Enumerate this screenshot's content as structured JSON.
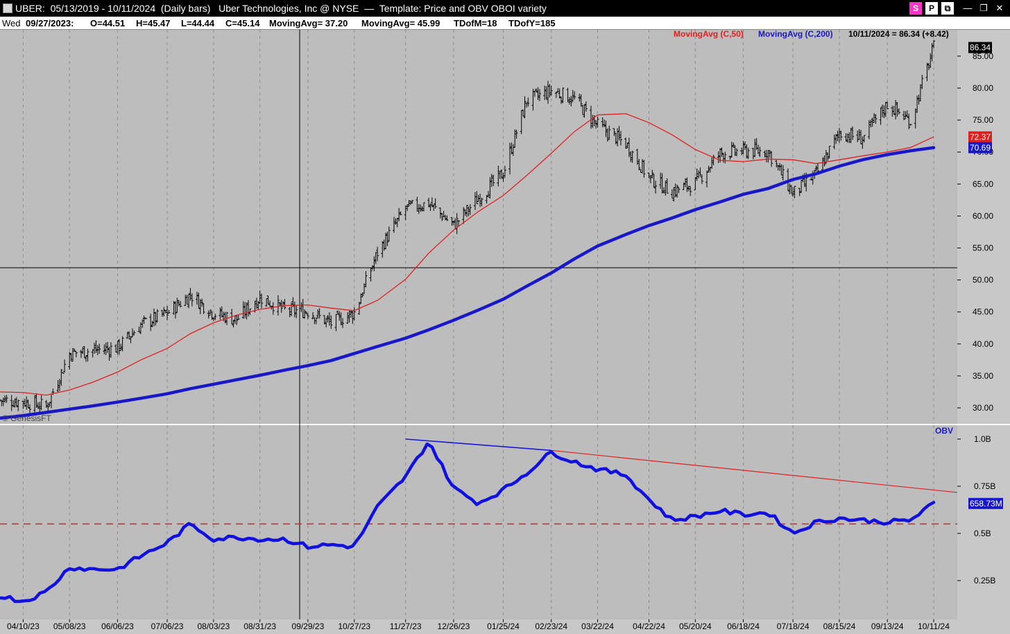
{
  "window": {
    "title": "UBER:  05/13/2019 - 10/11/2024  (Daily bars)   Uber Technologies, Inc @ NYSE  —  Template: Price and OBV OBOI variety",
    "buttons": [
      "S",
      "P",
      "⧉"
    ],
    "controls": [
      "—",
      "❐",
      "✕"
    ]
  },
  "info": {
    "day": "Wed",
    "date": "09/27/2023:",
    "open": "O=44.51",
    "high": "H=45.47",
    "low": "L=44.44",
    "close": "C=45.14",
    "ma1": "MovingAvg= 37.20",
    "ma2": "MovingAvg= 45.99",
    "tdofm": "TDofM=18",
    "tdofy": "TDofY=185"
  },
  "legend": {
    "ma50": "MovingAvg (C,50)",
    "ma200": "MovingAvg (C,200)",
    "last": "10/11/2024 = 86.34 (+8.42)"
  },
  "watermark": "© GenesisFT",
  "colors": {
    "price_bar": "#000000",
    "ma50": "#e02020",
    "ma200": "#1818c8",
    "obv": "#1010e0",
    "trend_blue": "#1818e0",
    "trend_red": "#e02020",
    "support": "#e02020"
  },
  "chart_data": [
    {
      "type": "line",
      "panel": "price",
      "ylim": [
        27,
        90
      ],
      "y_ticks": [
        "30.00",
        "35.00",
        "40.00",
        "45.00",
        "50.00",
        "55.00",
        "60.00",
        "65.00",
        "70.00",
        "75.00",
        "80.00",
        "85.00"
      ],
      "x_ticks": [
        "04/10/23",
        "05/08/23",
        "06/06/23",
        "07/06/23",
        "08/03/23",
        "08/31/23",
        "09/29/23",
        "10/27/23",
        "11/27/23",
        "12/26/23",
        "01/25/24",
        "02/23/24",
        "03/22/24",
        "04/22/24",
        "05/20/24",
        "06/18/24",
        "07/18/24",
        "08/15/24",
        "09/13/24",
        "10/11/24"
      ],
      "x": [
        "03/27/23",
        "04/10/23",
        "04/24/23",
        "05/08/23",
        "05/22/23",
        "06/06/23",
        "06/20/23",
        "07/06/23",
        "07/20/23",
        "08/03/23",
        "08/17/23",
        "08/31/23",
        "09/15/23",
        "09/29/23",
        "10/13/23",
        "10/27/23",
        "11/10/23",
        "11/27/23",
        "12/11/23",
        "12/26/23",
        "01/10/24",
        "01/25/24",
        "02/08/24",
        "02/23/24",
        "03/08/24",
        "03/22/24",
        "04/08/24",
        "04/22/24",
        "05/06/24",
        "05/20/24",
        "06/04/24",
        "06/18/24",
        "07/03/24",
        "07/18/24",
        "08/01/24",
        "08/15/24",
        "08/29/24",
        "09/13/24",
        "09/27/24",
        "10/11/24"
      ],
      "series": [
        {
          "name": "UBER",
          "values": [
            31.2,
            31.0,
            30.2,
            38.5,
            39.0,
            39.4,
            43.0,
            44.8,
            47.7,
            44.8,
            43.8,
            47.3,
            45.3,
            45.1,
            43.2,
            44.9,
            54.3,
            61.2,
            62.0,
            58.5,
            62.8,
            66.7,
            78.0,
            79.6,
            78.3,
            74.1,
            71.3,
            66.0,
            63.8,
            65.2,
            69.8,
            70.2,
            70.1,
            63.5,
            66.5,
            73.0,
            72.1,
            77.5,
            74.8,
            86.34
          ]
        },
        {
          "name": "MovingAvg (C,50)",
          "values": [
            32.5,
            32.4,
            32.0,
            32.8,
            34.0,
            35.6,
            37.5,
            39.3,
            41.6,
            43.3,
            44.5,
            45.4,
            46.0,
            46.1,
            45.6,
            45.2,
            46.8,
            50.1,
            54.2,
            57.8,
            60.7,
            63.2,
            66.3,
            69.8,
            73.2,
            75.8,
            76.0,
            74.6,
            72.7,
            70.4,
            68.7,
            68.5,
            68.9,
            68.8,
            68.2,
            68.8,
            69.4,
            70.0,
            70.7,
            72.37
          ]
        },
        {
          "name": "MovingAvg (C,200)",
          "values": [
            28.4,
            28.8,
            29.3,
            29.8,
            30.3,
            30.9,
            31.5,
            32.2,
            33.0,
            33.7,
            34.4,
            35.1,
            35.9,
            36.6,
            37.4,
            38.5,
            39.6,
            40.9,
            42.2,
            43.7,
            45.3,
            47.0,
            49.0,
            51.1,
            53.3,
            55.3,
            57.1,
            58.5,
            59.7,
            61.0,
            62.2,
            63.4,
            64.3,
            65.7,
            66.6,
            67.8,
            68.8,
            69.6,
            70.2,
            70.69
          ]
        }
      ],
      "tags": [
        "86.34",
        "72.37",
        "70.69"
      ]
    },
    {
      "type": "line",
      "panel": "OBV",
      "title": "OBV",
      "ylim": [
        0.05,
        1.05
      ],
      "y_ticks": [
        "0.25B",
        "0.5B",
        "0.75B",
        "1.0B"
      ],
      "x": [
        "03/27/23",
        "04/10/23",
        "04/24/23",
        "05/08/23",
        "05/22/23",
        "06/06/23",
        "06/20/23",
        "07/06/23",
        "07/20/23",
        "08/03/23",
        "08/17/23",
        "08/31/23",
        "09/15/23",
        "09/29/23",
        "10/13/23",
        "10/27/23",
        "11/10/23",
        "11/27/23",
        "12/11/23",
        "12/26/23",
        "01/10/24",
        "01/25/24",
        "02/08/24",
        "02/23/24",
        "03/08/24",
        "03/22/24",
        "04/08/24",
        "04/22/24",
        "05/06/24",
        "05/20/24",
        "06/04/24",
        "06/18/24",
        "07/03/24",
        "07/18/24",
        "08/01/24",
        "08/15/24",
        "08/29/24",
        "09/13/24",
        "09/27/24",
        "10/11/24"
      ],
      "series": [
        {
          "name": "OBV",
          "values": [
            0.17,
            0.14,
            0.19,
            0.32,
            0.31,
            0.31,
            0.38,
            0.45,
            0.55,
            0.47,
            0.48,
            0.47,
            0.47,
            0.43,
            0.44,
            0.43,
            0.64,
            0.8,
            0.99,
            0.74,
            0.66,
            0.73,
            0.82,
            0.93,
            0.88,
            0.84,
            0.81,
            0.68,
            0.57,
            0.59,
            0.62,
            0.6,
            0.61,
            0.5,
            0.56,
            0.58,
            0.57,
            0.56,
            0.57,
            0.65873
          ]
        }
      ],
      "trendlines": [
        {
          "from": [
            "11/27/23",
            1.0
          ],
          "to": [
            "02/23/24",
            0.94
          ]
        },
        {
          "from": [
            "02/23/24",
            0.94
          ],
          "to": [
            "10/11/24",
            0.73
          ]
        }
      ],
      "support_level": 0.55,
      "tag": "658.73M"
    }
  ]
}
